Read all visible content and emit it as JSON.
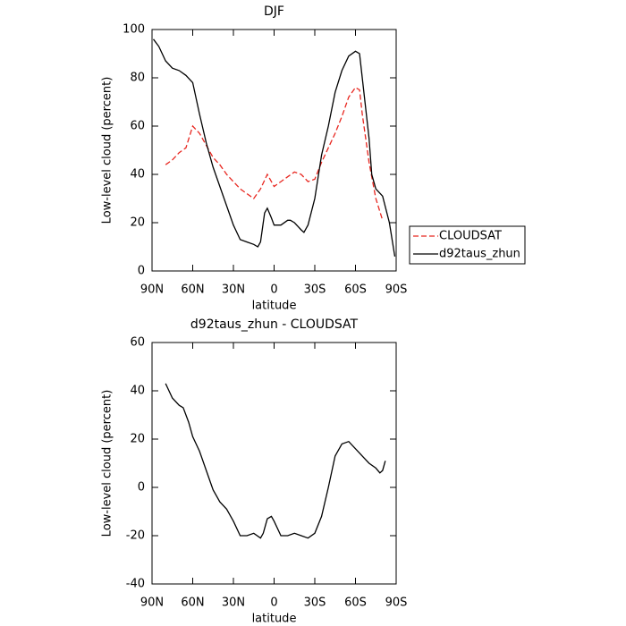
{
  "chart_data": [
    {
      "type": "line",
      "title": "DJF",
      "x_label": "latitude",
      "y_label": "Low-level cloud (percent)",
      "xlim": [
        90,
        -90
      ],
      "xticks": [
        {
          "value": 90,
          "label": "90N"
        },
        {
          "value": 60,
          "label": "60N"
        },
        {
          "value": 30,
          "label": "30N"
        },
        0,
        {
          "value": -30,
          "label": "30S"
        },
        {
          "value": -60,
          "label": "60S"
        },
        {
          "value": -90,
          "label": "90S"
        }
      ],
      "ylim": [
        0,
        100
      ],
      "yticks": [
        0,
        20,
        40,
        60,
        80,
        100
      ],
      "legend": "outside-right",
      "series": [
        {
          "name": "CLOUDSAT",
          "color": "#e8261f",
          "linestyle": "dashed",
          "x": [
            80,
            75,
            70,
            65,
            60,
            55,
            50,
            45,
            40,
            35,
            30,
            25,
            20,
            15,
            10,
            5,
            0,
            -5,
            -10,
            -15,
            -20,
            -25,
            -30,
            -35,
            -40,
            -45,
            -50,
            -55,
            -60,
            -63,
            -65,
            -70,
            -75,
            -80
          ],
          "values": [
            44,
            46,
            49,
            51,
            60,
            57,
            52,
            47,
            44,
            40,
            37,
            34,
            32,
            30,
            34,
            40,
            35,
            37,
            39,
            41,
            40,
            37,
            38,
            45,
            51,
            57,
            64,
            72,
            76,
            75,
            65,
            45,
            30,
            21
          ]
        },
        {
          "name": "d92taus_zhun",
          "color": "#000000",
          "linestyle": "solid",
          "x": [
            89,
            85,
            80,
            75,
            70,
            65,
            60,
            55,
            50,
            45,
            40,
            35,
            30,
            25,
            20,
            15,
            12,
            10,
            7,
            5,
            2,
            0,
            -5,
            -10,
            -12,
            -15,
            -20,
            -22,
            -25,
            -30,
            -35,
            -40,
            -45,
            -50,
            -55,
            -60,
            -63,
            -65,
            -70,
            -72,
            -75,
            -80,
            -85,
            -89
          ],
          "values": [
            96,
            93,
            87,
            84,
            83,
            81,
            78,
            65,
            53,
            43,
            35,
            27,
            19,
            13,
            12,
            11,
            10,
            12,
            24,
            26,
            22,
            19,
            19,
            21,
            21,
            20,
            17,
            16,
            19,
            30,
            48,
            60,
            74,
            83,
            89,
            91,
            90,
            80,
            55,
            40,
            34,
            31,
            20,
            6
          ]
        }
      ]
    },
    {
      "type": "line",
      "title": "d92taus_zhun - CLOUDSAT",
      "x_label": "latitude",
      "y_label": "Low-level cloud (percent)",
      "xlim": [
        90,
        -90
      ],
      "xticks": [
        {
          "value": 90,
          "label": "90N"
        },
        {
          "value": 60,
          "label": "60N"
        },
        {
          "value": 30,
          "label": "30N"
        },
        0,
        {
          "value": -30,
          "label": "30S"
        },
        {
          "value": -60,
          "label": "60S"
        },
        {
          "value": -90,
          "label": "90S"
        }
      ],
      "ylim": [
        -40,
        60
      ],
      "yticks": [
        -40,
        -20,
        0,
        20,
        40,
        60
      ],
      "series": [
        {
          "color": "#000000",
          "linestyle": "solid",
          "x": [
            80,
            75,
            70,
            67,
            63,
            60,
            55,
            50,
            45,
            40,
            35,
            30,
            25,
            20,
            15,
            10,
            8,
            5,
            2,
            0,
            -5,
            -10,
            -15,
            -20,
            -25,
            -30,
            -35,
            -40,
            -45,
            -50,
            -55,
            -60,
            -65,
            -70,
            -75,
            -78,
            -80,
            -82
          ],
          "values": [
            43,
            37,
            34,
            33,
            27,
            21,
            15,
            7,
            -1,
            -6,
            -9,
            -14,
            -20,
            -20,
            -19,
            -21,
            -19,
            -13,
            -12,
            -14,
            -20,
            -20,
            -19,
            -20,
            -21,
            -19,
            -12,
            0,
            13,
            18,
            19,
            16,
            13,
            10,
            8,
            6,
            7,
            11
          ]
        }
      ]
    }
  ]
}
